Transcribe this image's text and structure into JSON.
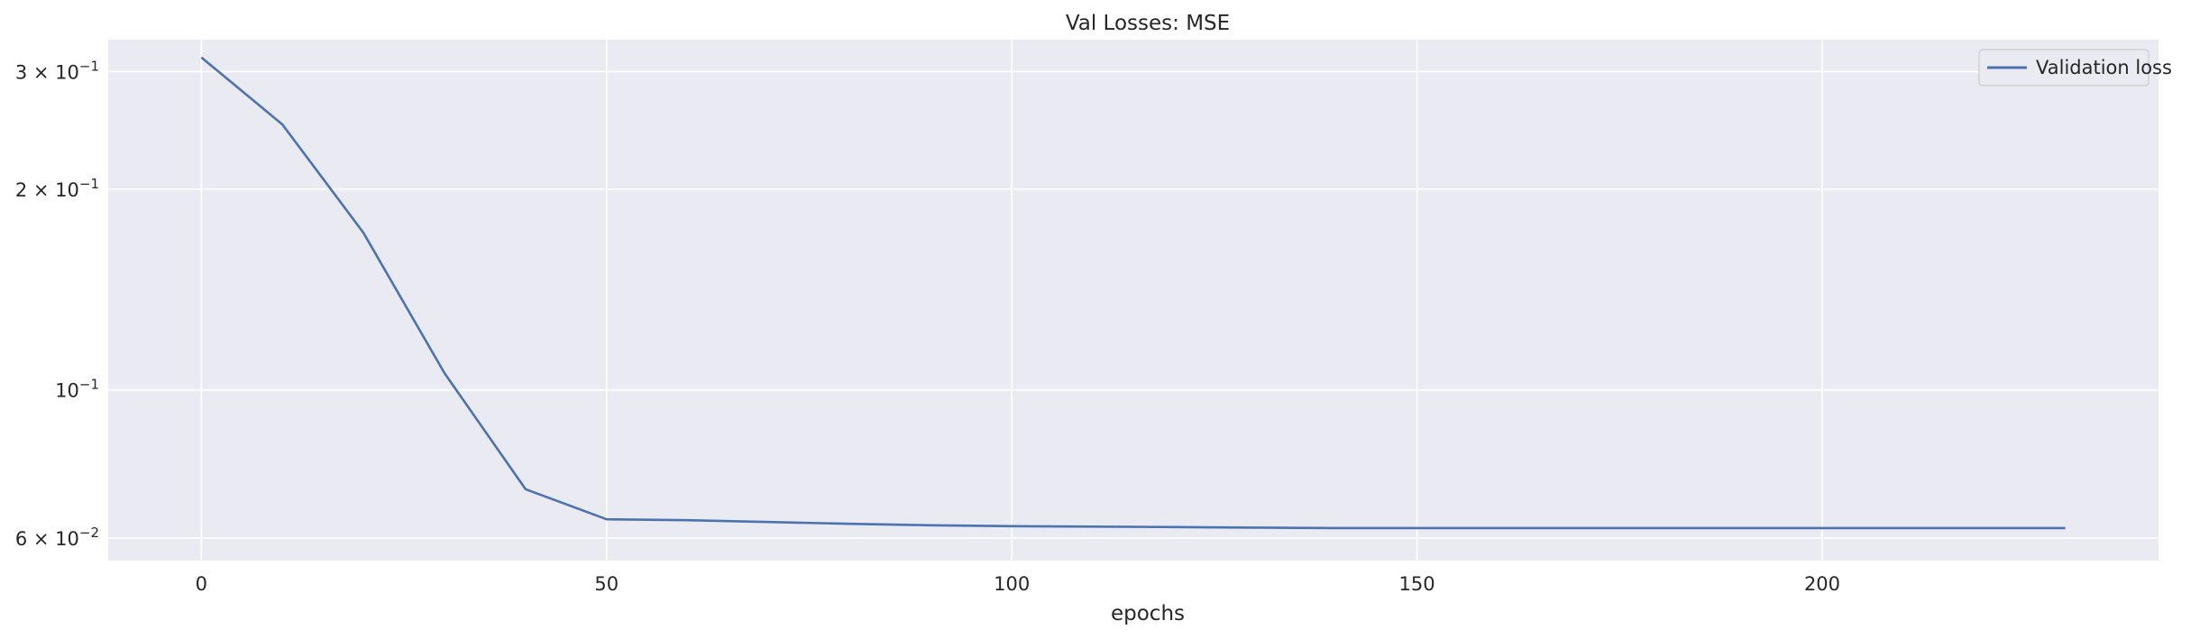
{
  "chart_data": {
    "type": "line",
    "title": "Val Losses:  MSE",
    "xlabel": "epochs",
    "ylabel": "",
    "yscale": "log",
    "xlim": [
      -11.5,
      241.5
    ],
    "ylim": [
      0.0555,
      0.335
    ],
    "grid": true,
    "background_color": "#eaeaf2",
    "grid_color": "#ffffff",
    "legend": {
      "placement": "top-right",
      "entries": [
        "Validation loss"
      ]
    },
    "x_ticks": [
      0,
      50,
      100,
      150,
      200
    ],
    "x_tick_labels": [
      "0",
      "50",
      "100",
      "150",
      "200"
    ],
    "y_ticks": [
      {
        "value": 0.3,
        "mantissa": "3",
        "base": "10",
        "exp": "−1"
      },
      {
        "value": 0.2,
        "mantissa": "2",
        "base": "10",
        "exp": "−1"
      },
      {
        "value": 0.1,
        "mantissa": "",
        "base": "10",
        "exp": "−1"
      },
      {
        "value": 0.06,
        "mantissa": "6",
        "base": "10",
        "exp": "−2"
      }
    ],
    "series": [
      {
        "name": "Validation loss",
        "color": "#4c72b0",
        "x": [
          0,
          10,
          20,
          30,
          40,
          50,
          60,
          70,
          80,
          90,
          100,
          110,
          120,
          130,
          140,
          150,
          160,
          170,
          180,
          190,
          200,
          210,
          220,
          230
        ],
        "y": [
          0.315,
          0.25,
          0.172,
          0.106,
          0.071,
          0.064,
          0.0638,
          0.0634,
          0.063,
          0.0627,
          0.0625,
          0.0624,
          0.0623,
          0.0622,
          0.0621,
          0.0621,
          0.0621,
          0.0621,
          0.0621,
          0.0621,
          0.0621,
          0.0621,
          0.0621,
          0.0621
        ]
      }
    ]
  }
}
